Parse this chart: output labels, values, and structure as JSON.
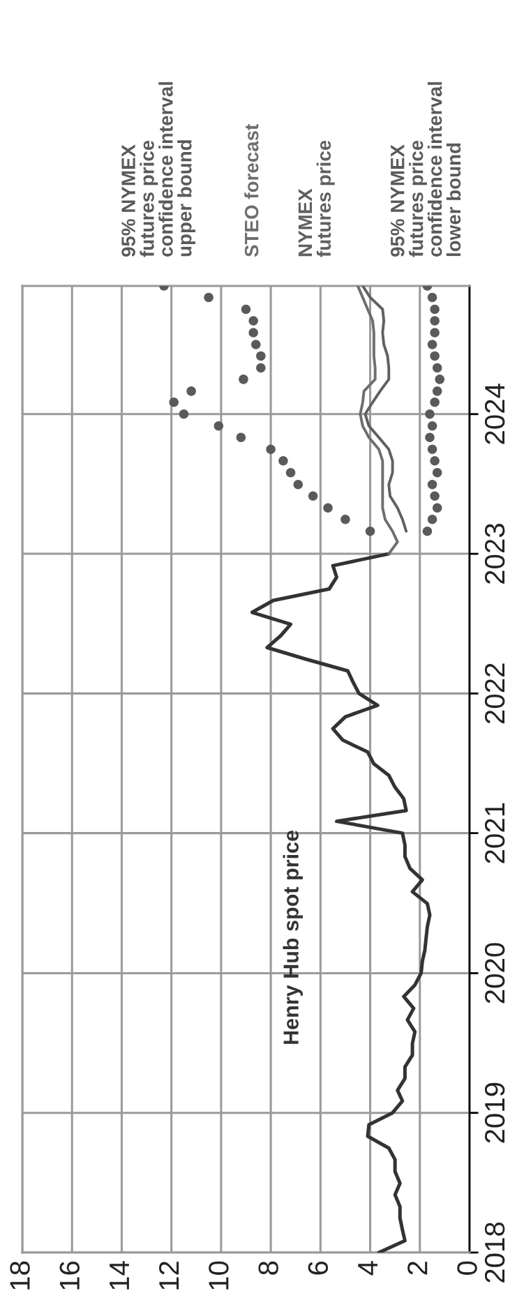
{
  "chart_data": {
    "type": "line",
    "orientation": "horizontal",
    "ylim": [
      "2018-01",
      "2024-12"
    ],
    "yticks": [
      "2018",
      "2019",
      "2020",
      "2021",
      "2022",
      "2023",
      "2024"
    ],
    "xlim": [
      18,
      0
    ],
    "xticks": [
      18,
      16,
      14,
      12,
      10,
      8,
      6,
      4,
      2,
      0
    ],
    "grid": true,
    "legend": false,
    "series": [
      {
        "name": "Henry Hub spot price",
        "type": "line",
        "color": "#333333",
        "x": [
          "2018-01",
          "2018-02",
          "2018-03",
          "2018-04",
          "2018-05",
          "2018-06",
          "2018-07",
          "2018-08",
          "2018-09",
          "2018-10",
          "2018-11",
          "2018-12",
          "2019-01",
          "2019-02",
          "2019-03",
          "2019-04",
          "2019-05",
          "2019-06",
          "2019-07",
          "2019-08",
          "2019-09",
          "2019-10",
          "2019-11",
          "2019-12",
          "2020-01",
          "2020-02",
          "2020-03",
          "2020-04",
          "2020-05",
          "2020-06",
          "2020-07",
          "2020-08",
          "2020-09",
          "2020-10",
          "2020-11",
          "2020-12",
          "2021-01",
          "2021-02",
          "2021-03",
          "2021-04",
          "2021-05",
          "2021-06",
          "2021-07",
          "2021-08",
          "2021-09",
          "2021-10",
          "2021-11",
          "2021-12",
          "2022-01",
          "2022-02",
          "2022-03",
          "2022-04",
          "2022-05",
          "2022-06",
          "2022-07",
          "2022-08",
          "2022-09",
          "2022-10",
          "2022-11",
          "2022-12",
          "2023-01"
        ],
        "values": [
          3.65,
          2.6,
          2.7,
          2.8,
          2.8,
          3.0,
          2.8,
          3.0,
          3.0,
          3.25,
          4.1,
          4.05,
          3.1,
          2.7,
          2.9,
          2.6,
          2.6,
          2.3,
          2.3,
          2.2,
          2.5,
          2.25,
          2.65,
          2.2,
          1.95,
          1.9,
          1.8,
          1.75,
          1.7,
          1.6,
          1.7,
          2.3,
          1.9,
          2.4,
          2.6,
          2.6,
          2.7,
          5.35,
          2.55,
          2.65,
          3.0,
          3.25,
          3.85,
          4.1,
          5.1,
          5.5,
          5.0,
          3.7,
          4.45,
          4.7,
          4.9,
          6.6,
          8.15,
          7.6,
          7.2,
          8.75,
          7.9,
          5.65,
          5.35,
          5.5,
          3.25
        ]
      },
      {
        "name": "95% NYMEX\nfutures price\nconfidence interval\nupper bound",
        "type": "scatter",
        "marker": "circle",
        "color": "#5a5a5a",
        "x": [
          "2023-03",
          "2023-04",
          "2023-05",
          "2023-06",
          "2023-07",
          "2023-08",
          "2023-09",
          "2023-10",
          "2023-11",
          "2023-12",
          "2024-01",
          "2024-02",
          "2024-03",
          "2024-04",
          "2024-05",
          "2024-06",
          "2024-07",
          "2024-08",
          "2024-09",
          "2024-10",
          "2024-11",
          "2024-12"
        ],
        "values": [
          4.0,
          5.0,
          5.7,
          6.3,
          6.9,
          7.2,
          7.5,
          8.0,
          9.2,
          10.1,
          11.5,
          11.9,
          11.2,
          9.1,
          8.4,
          8.4,
          8.6,
          8.7,
          8.7,
          9.0,
          10.5,
          12.3
        ]
      },
      {
        "name": "STEO forecast",
        "type": "line",
        "color": "#6e6e6e",
        "x": [
          "2023-01",
          "2023-02",
          "2023-03",
          "2023-04",
          "2023-05",
          "2023-06",
          "2023-07",
          "2023-08",
          "2023-09",
          "2023-10",
          "2023-11",
          "2023-12",
          "2024-01",
          "2024-02",
          "2024-03",
          "2024-04",
          "2024-05",
          "2024-06",
          "2024-07",
          "2024-08",
          "2024-09",
          "2024-10",
          "2024-11",
          "2024-12"
        ],
        "values": [
          3.25,
          2.9,
          3.1,
          3.4,
          3.5,
          3.5,
          3.5,
          3.5,
          3.5,
          3.65,
          4.05,
          4.3,
          4.4,
          4.3,
          4.25,
          3.8,
          3.8,
          3.85,
          3.85,
          3.85,
          3.9,
          4.1,
          4.3,
          4.5
        ]
      },
      {
        "name": "NYMEX\nfutures price",
        "type": "line",
        "color": "#606060",
        "x": [
          "2023-03",
          "2023-04",
          "2023-05",
          "2023-06",
          "2023-07",
          "2023-08",
          "2023-09",
          "2023-10",
          "2023-11",
          "2023-12",
          "2024-01",
          "2024-02",
          "2024-03",
          "2024-04",
          "2024-05",
          "2024-06",
          "2024-07",
          "2024-08",
          "2024-09",
          "2024-10",
          "2024-11",
          "2024-12"
        ],
        "values": [
          2.55,
          2.7,
          2.9,
          3.2,
          3.25,
          3.1,
          3.1,
          3.25,
          3.65,
          4.05,
          4.2,
          3.9,
          3.6,
          3.25,
          3.25,
          3.3,
          3.45,
          3.5,
          3.45,
          3.5,
          4.0,
          4.3
        ]
      },
      {
        "name": "95% NYMEX\nfutures price\nconfidence interval\nlower bound",
        "type": "scatter",
        "marker": "circle",
        "color": "#5a5a5a",
        "x": [
          "2023-03",
          "2023-04",
          "2023-05",
          "2023-06",
          "2023-07",
          "2023-08",
          "2023-09",
          "2023-10",
          "2023-11",
          "2023-12",
          "2024-01",
          "2024-02",
          "2024-03",
          "2024-04",
          "2024-05",
          "2024-06",
          "2024-07",
          "2024-08",
          "2024-09",
          "2024-10",
          "2024-11",
          "2024-12"
        ],
        "values": [
          1.7,
          1.5,
          1.3,
          1.4,
          1.5,
          1.3,
          1.4,
          1.5,
          1.6,
          1.5,
          1.6,
          1.4,
          1.3,
          1.2,
          1.3,
          1.4,
          1.5,
          1.4,
          1.4,
          1.4,
          1.5,
          1.7
        ]
      }
    ]
  }
}
